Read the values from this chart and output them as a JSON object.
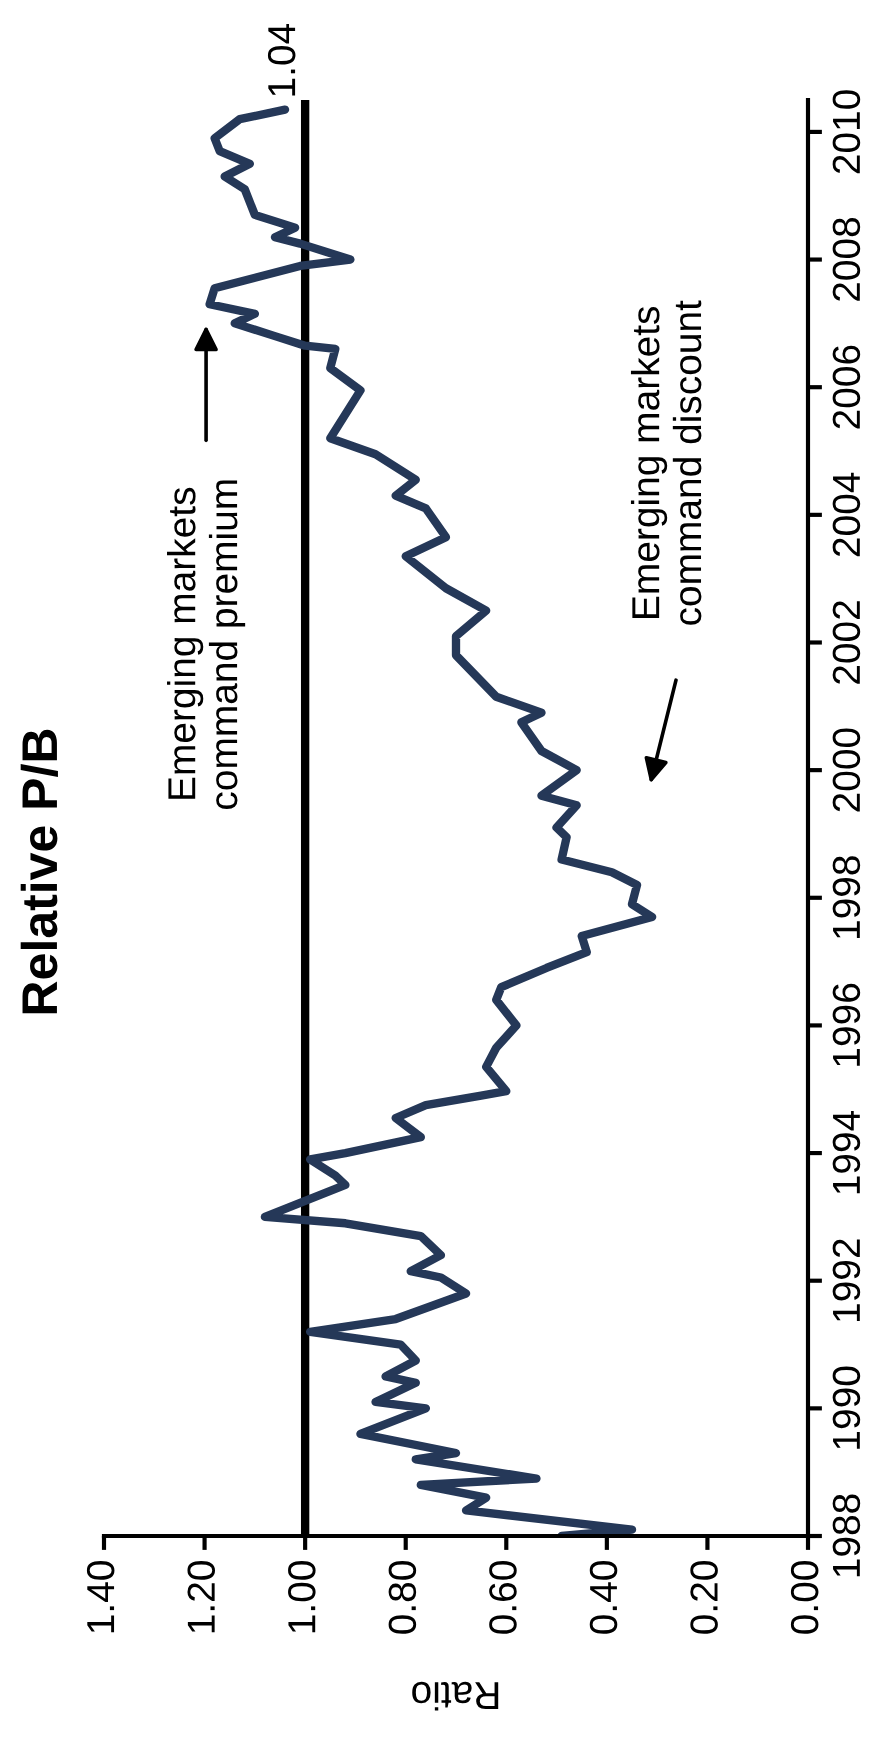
{
  "chart_data": {
    "type": "line",
    "title": "Relative P/B",
    "xlabel": "Ratio",
    "series": [
      {
        "color": "#253858",
        "x": [
          0.49,
          0.35,
          0.68,
          0.64,
          0.77,
          0.54,
          0.78,
          0.7,
          0.89,
          0.76,
          0.86,
          0.78,
          0.84,
          0.78,
          0.81,
          0.99,
          0.82,
          0.68,
          0.73,
          0.79,
          0.73,
          0.77,
          0.92,
          1.08,
          1.0,
          0.92,
          0.94,
          0.99,
          0.92,
          0.77,
          0.82,
          0.76,
          0.65,
          0.6,
          0.64,
          0.62,
          0.58,
          0.62,
          0.61,
          0.52,
          0.44,
          0.45,
          0.31,
          0.35,
          0.34,
          0.39,
          0.49,
          0.48,
          0.5,
          0.46,
          0.53,
          0.46,
          0.53,
          0.57,
          0.53,
          0.62,
          0.7,
          0.7,
          0.64,
          0.72,
          0.8,
          0.72,
          0.76,
          0.82,
          0.78,
          0.86,
          0.95,
          0.89,
          0.95,
          0.94,
          1.0,
          1.06,
          1.14,
          1.1,
          1.19,
          1.18,
          1.01,
          0.91,
          1.01,
          1.06,
          1.02,
          1.1,
          1.12,
          1.16,
          1.11,
          1.17,
          1.18,
          1.13,
          1.04
        ],
        "values": [
          1988.0,
          1988.1,
          1988.4,
          1988.6,
          1988.8,
          1988.9,
          1989.2,
          1989.3,
          1989.6,
          1990.0,
          1990.1,
          1990.4,
          1990.5,
          1990.75,
          1991.0,
          1991.2,
          1991.4,
          1991.8,
          1992.05,
          1992.15,
          1992.4,
          1992.7,
          1992.9,
          1993.0,
          1993.25,
          1993.5,
          1993.65,
          1993.9,
          1994.0,
          1994.25,
          1994.55,
          1994.75,
          1994.9,
          1994.97,
          1995.35,
          1995.65,
          1996.0,
          1996.4,
          1996.6,
          1996.9,
          1997.15,
          1997.4,
          1997.7,
          1997.9,
          1998.2,
          1998.4,
          1998.6,
          1998.95,
          1999.1,
          1999.45,
          1999.6,
          2000.0,
          2000.3,
          2000.75,
          2000.9,
          2001.15,
          2001.8,
          2002.1,
          2002.5,
          2002.85,
          2003.35,
          2003.65,
          2004.1,
          2004.3,
          2004.55,
          2004.95,
          2005.2,
          2005.95,
          2006.3,
          2006.6,
          2006.65,
          2006.8,
          2007.0,
          2007.15,
          2007.3,
          2007.55,
          2007.9,
          2008.0,
          2008.25,
          2008.35,
          2008.5,
          2008.7,
          2009.1,
          2009.3,
          2009.5,
          2009.7,
          2009.9,
          2010.2,
          2010.35
        ]
      }
    ],
    "xlim": [
      1.4,
      0
    ],
    "xticks": [
      {
        "value": 1.4,
        "label": "1.40"
      },
      {
        "value": 1.2,
        "label": "1.20"
      },
      {
        "value": 1.0,
        "label": "1.00"
      },
      {
        "value": 0.8,
        "label": "0.80"
      },
      {
        "value": 0.6,
        "label": "0.60"
      },
      {
        "value": 0.4,
        "label": "0.40"
      },
      {
        "value": 0.2,
        "label": "0.20"
      },
      {
        "value": 0,
        "label": "0.00"
      }
    ],
    "ylim": [
      1988,
      2010.5
    ],
    "yticks": [
      1988,
      1990,
      1992,
      1994,
      1996,
      1998,
      2000,
      2002,
      2004,
      2006,
      2008,
      2010
    ],
    "ref_lines": [
      {
        "axis": "x",
        "value": 1.0,
        "color": "#000000"
      }
    ],
    "annotations": [
      {
        "text": "1.04",
        "x": 1.04,
        "y": 2010.35
      },
      "Emerging markets\ncommand premium",
      "Emerging markets\ncommand discount"
    ],
    "grid": false
  }
}
